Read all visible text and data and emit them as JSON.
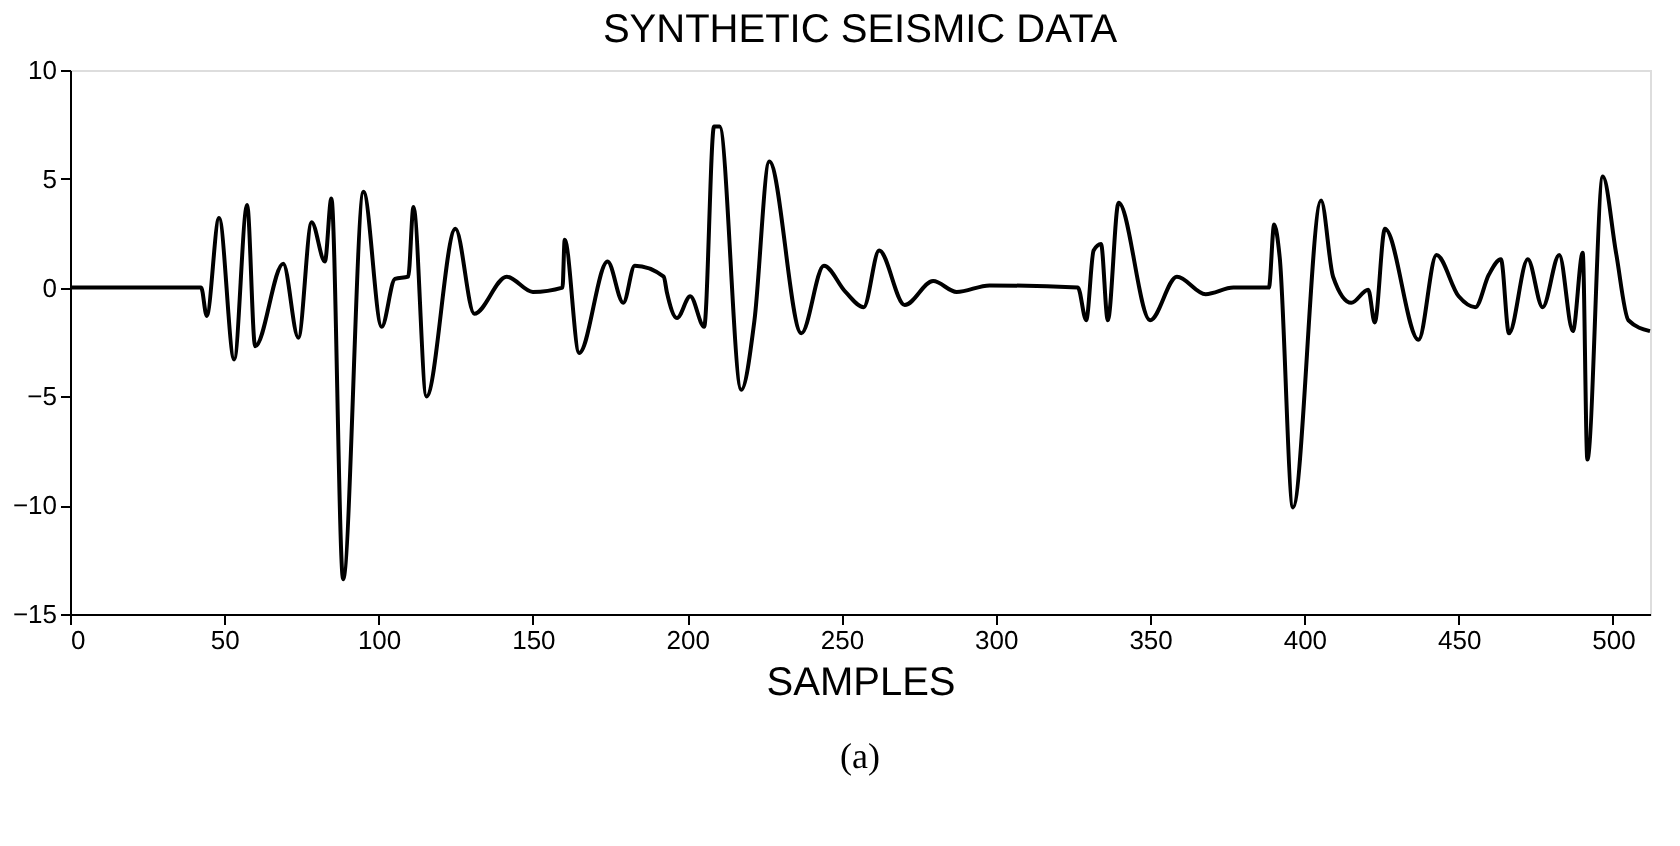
{
  "chart_data": {
    "type": "line",
    "title": "SYNTHETIC SEISMIC DATA",
    "xlabel": "SAMPLES",
    "annotations": [
      "(a)"
    ],
    "x": [
      0,
      42.5,
      44.3,
      48.3,
      53.2,
      57.4,
      60,
      69.1,
      74,
      78.3,
      82.6,
      84.7,
      88.5,
      95.1,
      101,
      105.3,
      109.6,
      111.3,
      115.5,
      124.9,
      131,
      141.5,
      150,
      159.6,
      160.3,
      165,
      174.2,
      179.3,
      183,
      192.4,
      193.4,
      196.7,
      201,
      205.5,
      208.7,
      210.5,
      217.5,
      221.8,
      226.6,
      237,
      244.3,
      251.3,
      257.2,
      262.2,
      270.5,
      279.7,
      287.3,
      298,
      326.6,
      329.3,
      331.7,
      334.1,
      336.3,
      339.8,
      350,
      358.7,
      368,
      377,
      388.5,
      390.2,
      392,
      396.3,
      405.4,
      409.3,
      415.2,
      420.7,
      422.8,
      426.1,
      437,
      442.8,
      450,
      455.4,
      459.8,
      463.7,
      466.3,
      472.4,
      477.2,
      482.6,
      487,
      490.2,
      491.7,
      496.7,
      501,
      505,
      512
    ],
    "series": [
      {
        "color": "#000000",
        "values": [
          0,
          0,
          -1.3,
          3.2,
          -3.3,
          3.8,
          -2.7,
          1.1,
          -2.3,
          3.0,
          1.2,
          4.1,
          -13.4,
          4.4,
          -1.8,
          0.4,
          0.5,
          3.7,
          -5.0,
          2.7,
          -1.2,
          0.5,
          -0.2,
          0,
          2.2,
          -3.0,
          1.2,
          -0.7,
          1.0,
          0.5,
          -0.2,
          -1.4,
          -0.4,
          -1.8,
          7.4,
          7.4,
          -4.7,
          -1.5,
          5.8,
          -2.1,
          1.0,
          -0.2,
          -0.9,
          1.7,
          -0.8,
          0.3,
          -0.2,
          0.1,
          0,
          -1.5,
          1.7,
          2.0,
          -1.5,
          3.9,
          -1.5,
          0.5,
          -0.3,
          0,
          0,
          2.9,
          1.4,
          -10.1,
          4.0,
          0.5,
          -0.7,
          -0.1,
          -1.6,
          2.7,
          -2.4,
          1.5,
          -0.4,
          -0.9,
          0.6,
          1.3,
          -2.1,
          1.3,
          -0.9,
          1.5,
          -2.0,
          1.6,
          -7.9,
          5.1,
          1.6,
          -1.5,
          -2.0
        ]
      }
    ],
    "xlim": [
      0,
      512
    ],
    "xticks": [
      0,
      50,
      100,
      150,
      200,
      250,
      300,
      350,
      400,
      450,
      500
    ],
    "ylim": [
      -15,
      10
    ],
    "yticks": [
      -15,
      -10,
      -5,
      0,
      5,
      10
    ],
    "grid": false,
    "line_style": "solid",
    "marker": "none",
    "legend": false
  }
}
